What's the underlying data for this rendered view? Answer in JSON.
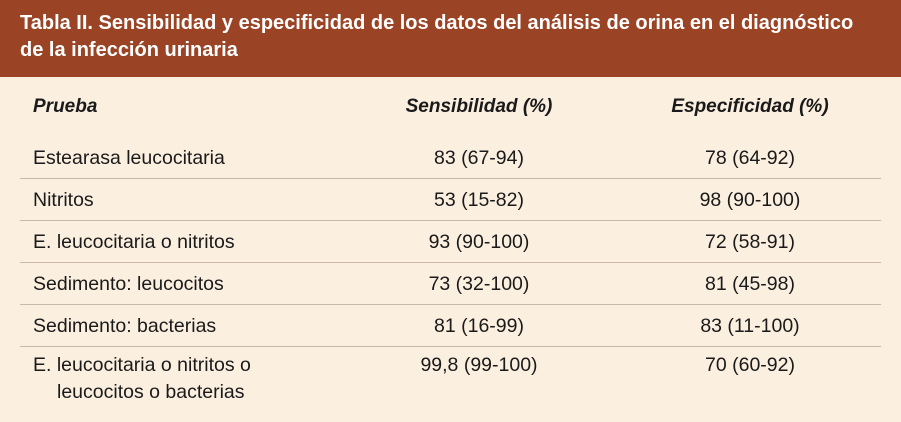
{
  "title": "Tabla II.  Sensibilidad y especificidad de los datos del análisis de orina en el diagnóstico de la infección urinaria",
  "columns": [
    "Prueba",
    "Sensibilidad (%)",
    "Especificidad (%)"
  ],
  "rows": [
    {
      "prueba": "Estearasa leucocitaria",
      "sensibilidad": "83 (67-94)",
      "especificidad": "78 (64-92)"
    },
    {
      "prueba": "Nitritos",
      "sensibilidad": "53 (15-82)",
      "especificidad": "98 (90-100)"
    },
    {
      "prueba": "E. leucocitaria o nitritos",
      "sensibilidad": "93 (90-100)",
      "especificidad": "72 (58-91)"
    },
    {
      "prueba": "Sedimento: leucocitos",
      "sensibilidad": "73 (32-100)",
      "especificidad": "81 (45-98)"
    },
    {
      "prueba": "Sedimento: bacterias",
      "sensibilidad": "81 (16-99)",
      "especificidad": "83 (11-100)"
    },
    {
      "prueba": "E. leucocitaria o nitritos o",
      "prueba_line2": "leucocitos o bacterias",
      "sensibilidad": "99,8 (99-100)",
      "especificidad": "70 (60-92)"
    }
  ],
  "colors": {
    "title_background": "#9b4325",
    "table_background": "#fbefe0",
    "title_text": "#ffffff",
    "row_divider": "#c9b9a5"
  }
}
